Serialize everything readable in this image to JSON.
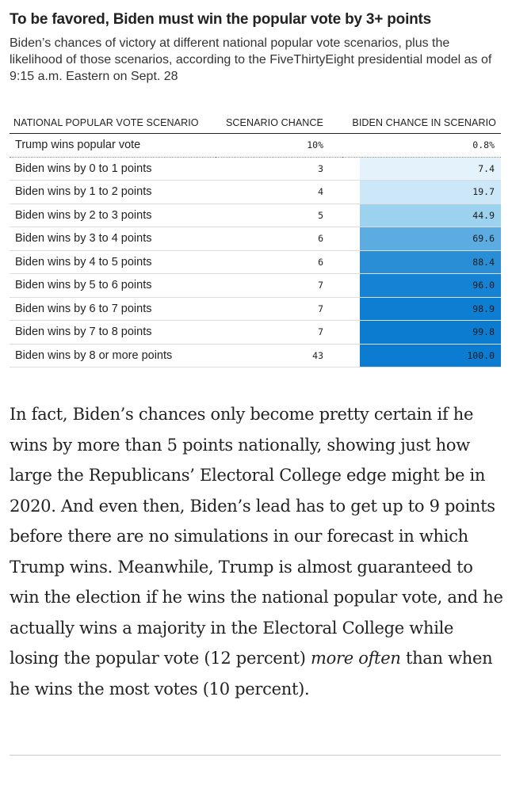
{
  "chart_data": {
    "type": "table",
    "title": "To be favored, Biden must win the popular vote by 3+ points",
    "subtitle": "Biden’s chances of victory at different national popular vote scenarios, plus the likelihood of those scenarios, according to the FiveThirtyEight presidential model as of 9:15 a.m. Eastern on Sept. 28",
    "columns": [
      "NATIONAL POPULAR VOTE SCENARIO",
      "SCENARIO CHANCE",
      "BIDEN CHANCE IN SCENARIO"
    ],
    "rows": [
      {
        "scenario": "Trump wins popular vote",
        "scenario_chance": "10%",
        "biden_chance": "0.8%",
        "biden_value": 0.8
      },
      {
        "scenario": "Biden wins by 0 to 1 points",
        "scenario_chance": "3",
        "biden_chance": "7.4",
        "biden_value": 7.4
      },
      {
        "scenario": "Biden wins by 1 to 2 points",
        "scenario_chance": "4",
        "biden_chance": "19.7",
        "biden_value": 19.7
      },
      {
        "scenario": "Biden wins by 2 to 3 points",
        "scenario_chance": "5",
        "biden_chance": "44.9",
        "biden_value": 44.9
      },
      {
        "scenario": "Biden wins by 3 to 4 points",
        "scenario_chance": "6",
        "biden_chance": "69.6",
        "biden_value": 69.6
      },
      {
        "scenario": "Biden wins by 4 to 5 points",
        "scenario_chance": "6",
        "biden_chance": "88.4",
        "biden_value": 88.4
      },
      {
        "scenario": "Biden wins by 5 to 6 points",
        "scenario_chance": "7",
        "biden_chance": "96.0",
        "biden_value": 96.0
      },
      {
        "scenario": "Biden wins by 6 to 7 points",
        "scenario_chance": "7",
        "biden_chance": "98.9",
        "biden_value": 98.9
      },
      {
        "scenario": "Biden wins by 7 to 8 points",
        "scenario_chance": "7",
        "biden_chance": "99.8",
        "biden_value": 99.8
      },
      {
        "scenario": "Biden wins by 8 or more points",
        "scenario_chance": "43",
        "biden_chance": "100.0",
        "biden_value": 100.0
      }
    ],
    "colors": {
      "low": "#f1f8fd",
      "mid": "#9dd2ef",
      "high": "#0b7cd1"
    }
  },
  "article": {
    "p1_a": "In fact, Biden’s chances only become pretty certain if he wins by more than 5 points nationally, showing just how large the Republicans’ Electoral College edge might be in 2020. And even then, Biden’s lead has to get up to 9 points before there are no simulations in our forecast in which Trump wins. Meanwhile, Trump is almost guaranteed to win the election if he wins the national popular vote, and he actually wins a majority in the Electoral College while losing the popular vote (12 percent) ",
    "p1_em": "more often",
    "p1_b": " than when he wins the most votes (10 percent)."
  }
}
